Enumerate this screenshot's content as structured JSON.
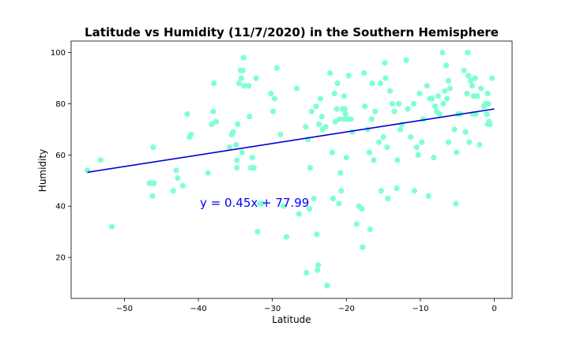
{
  "chart_data": {
    "type": "scatter",
    "title": "Latitude vs Humidity (11/7/2020) in the Southern Hemisphere",
    "xlabel": "Latitude",
    "ylabel": "Humidity",
    "xlim": [
      -57.2,
      2.4
    ],
    "ylim": [
      4,
      104.5
    ],
    "xticks": [
      -50,
      -40,
      -30,
      -20,
      -10,
      0
    ],
    "xtick_labels": [
      "−50",
      "−40",
      "−30",
      "−20",
      "−10",
      "0"
    ],
    "yticks": [
      20,
      40,
      60,
      80,
      100
    ],
    "ytick_labels": [
      "20",
      "40",
      "60",
      "80",
      "100"
    ],
    "grid": false,
    "point_color": "#7fffd4",
    "line_color": "#0000cd",
    "annotation_color": "#0000ff",
    "regression": {
      "slope": 0.45,
      "intercept": 77.99,
      "x_range": [
        -55,
        0
      ],
      "label": "y = 0.45x + 77.99"
    },
    "points": [
      [
        -55.0,
        54
      ],
      [
        -53.2,
        58
      ],
      [
        -51.7,
        32
      ],
      [
        -46.6,
        49
      ],
      [
        -46.3,
        49
      ],
      [
        -46.1,
        63
      ],
      [
        -46.0,
        49
      ],
      [
        -46.2,
        44
      ],
      [
        -43.4,
        46
      ],
      [
        -43.0,
        54
      ],
      [
        -42.8,
        51
      ],
      [
        -42.1,
        48
      ],
      [
        -41.5,
        76
      ],
      [
        -41.2,
        67
      ],
      [
        -41.0,
        68
      ],
      [
        -38.7,
        53
      ],
      [
        -38.2,
        72
      ],
      [
        -38.0,
        77
      ],
      [
        -37.9,
        88
      ],
      [
        -37.6,
        73
      ],
      [
        -35.8,
        63
      ],
      [
        -35.5,
        68
      ],
      [
        -35.3,
        69
      ],
      [
        -34.9,
        64
      ],
      [
        -34.8,
        58
      ],
      [
        -34.8,
        55
      ],
      [
        -34.7,
        72
      ],
      [
        -34.5,
        88
      ],
      [
        -34.3,
        93
      ],
      [
        -34.2,
        90
      ],
      [
        -34.0,
        93
      ],
      [
        -34.1,
        61
      ],
      [
        -33.9,
        98
      ],
      [
        -33.8,
        87
      ],
      [
        -33.2,
        87
      ],
      [
        -33.1,
        75
      ],
      [
        -32.9,
        55
      ],
      [
        -32.7,
        59
      ],
      [
        -32.5,
        55
      ],
      [
        -32.2,
        90
      ],
      [
        -32.0,
        30
      ],
      [
        -31.7,
        41
      ],
      [
        -31.4,
        41
      ],
      [
        -30.2,
        84
      ],
      [
        -29.9,
        77
      ],
      [
        -29.7,
        82
      ],
      [
        -29.4,
        94
      ],
      [
        -28.9,
        68
      ],
      [
        -28.5,
        40
      ],
      [
        -28.1,
        28
      ],
      [
        -26.7,
        86
      ],
      [
        -26.4,
        37
      ],
      [
        -25.5,
        71
      ],
      [
        -25.4,
        14
      ],
      [
        -25.2,
        66
      ],
      [
        -25.0,
        39
      ],
      [
        -24.9,
        55
      ],
      [
        -24.7,
        77
      ],
      [
        -24.4,
        43
      ],
      [
        -24.1,
        79
      ],
      [
        -24.0,
        29
      ],
      [
        -23.9,
        15
      ],
      [
        -23.8,
        17
      ],
      [
        -23.7,
        72
      ],
      [
        -23.5,
        82
      ],
      [
        -23.3,
        75
      ],
      [
        -23.2,
        70
      ],
      [
        -22.8,
        71
      ],
      [
        -22.6,
        9
      ],
      [
        -22.2,
        92
      ],
      [
        -21.9,
        61
      ],
      [
        -21.8,
        43
      ],
      [
        -21.6,
        84
      ],
      [
        -21.5,
        73
      ],
      [
        -21.3,
        78
      ],
      [
        -21.2,
        88
      ],
      [
        -21.0,
        41
      ],
      [
        -20.9,
        74
      ],
      [
        -20.8,
        53
      ],
      [
        -20.7,
        46
      ],
      [
        -20.5,
        78
      ],
      [
        -20.3,
        74
      ],
      [
        -20.3,
        83
      ],
      [
        -20.2,
        78
      ],
      [
        -20.1,
        76
      ],
      [
        -20.0,
        59
      ],
      [
        -19.8,
        74
      ],
      [
        -19.7,
        91
      ],
      [
        -19.4,
        74
      ],
      [
        -19.2,
        69
      ],
      [
        -18.6,
        33
      ],
      [
        -18.3,
        40
      ],
      [
        -17.9,
        39
      ],
      [
        -17.8,
        24
      ],
      [
        -17.6,
        92
      ],
      [
        -17.5,
        79
      ],
      [
        -17.1,
        70
      ],
      [
        -16.9,
        61
      ],
      [
        -16.8,
        31
      ],
      [
        -16.6,
        74
      ],
      [
        -16.5,
        88
      ],
      [
        -16.3,
        58
      ],
      [
        -16.1,
        77
      ],
      [
        -15.6,
        65
      ],
      [
        -15.4,
        88
      ],
      [
        -15.3,
        46
      ],
      [
        -15.0,
        67
      ],
      [
        -14.8,
        96
      ],
      [
        -14.7,
        90
      ],
      [
        -14.5,
        63
      ],
      [
        -14.4,
        43
      ],
      [
        -14.1,
        85
      ],
      [
        -13.8,
        80
      ],
      [
        -13.5,
        77
      ],
      [
        -13.2,
        47
      ],
      [
        -13.1,
        58
      ],
      [
        -12.9,
        80
      ],
      [
        -12.7,
        70
      ],
      [
        -12.5,
        72
      ],
      [
        -11.9,
        97
      ],
      [
        -11.7,
        78
      ],
      [
        -11.3,
        67
      ],
      [
        -10.9,
        80
      ],
      [
        -10.8,
        46
      ],
      [
        -10.5,
        63
      ],
      [
        -10.3,
        60
      ],
      [
        -10.1,
        84
      ],
      [
        -9.8,
        65
      ],
      [
        -9.6,
        74
      ],
      [
        -9.1,
        87
      ],
      [
        -8.9,
        44
      ],
      [
        -8.7,
        82
      ],
      [
        -8.4,
        82
      ],
      [
        -8.2,
        59
      ],
      [
        -8.0,
        79
      ],
      [
        -7.8,
        77
      ],
      [
        -7.6,
        83
      ],
      [
        -7.4,
        76
      ],
      [
        -7.0,
        100
      ],
      [
        -6.9,
        80
      ],
      [
        -6.7,
        85
      ],
      [
        -6.5,
        95
      ],
      [
        -6.4,
        82
      ],
      [
        -6.2,
        89
      ],
      [
        -6.2,
        65
      ],
      [
        -6.0,
        86
      ],
      [
        -5.4,
        70
      ],
      [
        -5.2,
        41
      ],
      [
        -5.1,
        61
      ],
      [
        -4.9,
        76
      ],
      [
        -4.6,
        76
      ],
      [
        -4.1,
        93
      ],
      [
        -3.9,
        69
      ],
      [
        -3.7,
        84
      ],
      [
        -3.6,
        100
      ],
      [
        -3.5,
        91
      ],
      [
        -3.4,
        65
      ],
      [
        -3.2,
        89
      ],
      [
        -3.0,
        87
      ],
      [
        -2.9,
        76
      ],
      [
        -2.8,
        83
      ],
      [
        -2.6,
        90
      ],
      [
        -2.5,
        76
      ],
      [
        -2.3,
        83
      ],
      [
        -2.0,
        64
      ],
      [
        -1.8,
        86
      ],
      [
        -1.4,
        79
      ],
      [
        -1.2,
        80
      ],
      [
        -1.0,
        76
      ],
      [
        -0.9,
        72
      ],
      [
        -0.8,
        80
      ],
      [
        -0.9,
        84
      ],
      [
        -0.7,
        73
      ],
      [
        -0.6,
        72
      ],
      [
        -0.3,
        90
      ]
    ]
  }
}
